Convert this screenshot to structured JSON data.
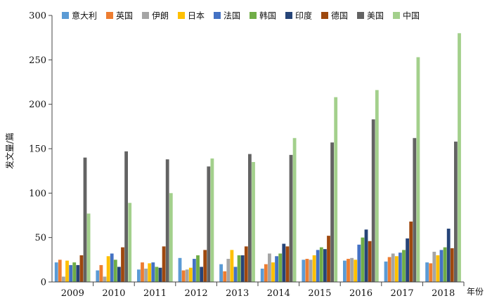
{
  "chart_data": {
    "type": "bar",
    "title": "",
    "xlabel": "年份",
    "ylabel": "发文量/篇",
    "ylim": [
      0,
      300
    ],
    "yticks": [
      0,
      50,
      100,
      150,
      200,
      250,
      300
    ],
    "grid": false,
    "legend_position": "top",
    "categories": [
      "2009",
      "2010",
      "2011",
      "2012",
      "2013",
      "2014",
      "2015",
      "2016",
      "2017",
      "2018"
    ],
    "series": [
      {
        "name": "意大利",
        "color": "#5b9bd5",
        "values": [
          22,
          13,
          14,
          27,
          20,
          15,
          25,
          24,
          23,
          22
        ]
      },
      {
        "name": "英国",
        "color": "#ed7d31",
        "values": [
          25,
          19,
          22,
          13,
          12,
          20,
          26,
          26,
          28,
          21
        ]
      },
      {
        "name": "伊朗",
        "color": "#a5a5a5",
        "values": [
          6,
          6,
          15,
          14,
          26,
          32,
          25,
          27,
          32,
          34
        ]
      },
      {
        "name": "日本",
        "color": "#ffc000",
        "values": [
          24,
          29,
          21,
          16,
          36,
          22,
          30,
          25,
          29,
          30
        ]
      },
      {
        "name": "法国",
        "color": "#4472c4",
        "values": [
          19,
          32,
          22,
          26,
          17,
          29,
          36,
          42,
          33,
          36
        ]
      },
      {
        "name": "韩国",
        "color": "#70ad47",
        "values": [
          22,
          25,
          17,
          30,
          30,
          32,
          39,
          50,
          36,
          39
        ]
      },
      {
        "name": "印度",
        "color": "#264478",
        "values": [
          19,
          17,
          16,
          17,
          30,
          43,
          37,
          59,
          49,
          60
        ]
      },
      {
        "name": "德国",
        "color": "#9e480e",
        "values": [
          30,
          39,
          40,
          36,
          40,
          40,
          52,
          46,
          68,
          38
        ]
      },
      {
        "name": "美国",
        "color": "#636363",
        "values": [
          140,
          147,
          138,
          130,
          144,
          143,
          157,
          183,
          162,
          158
        ]
      },
      {
        "name": "中国",
        "color": "#a3d08c",
        "values": [
          77,
          89,
          100,
          139,
          135,
          162,
          208,
          216,
          253,
          280
        ]
      }
    ]
  }
}
